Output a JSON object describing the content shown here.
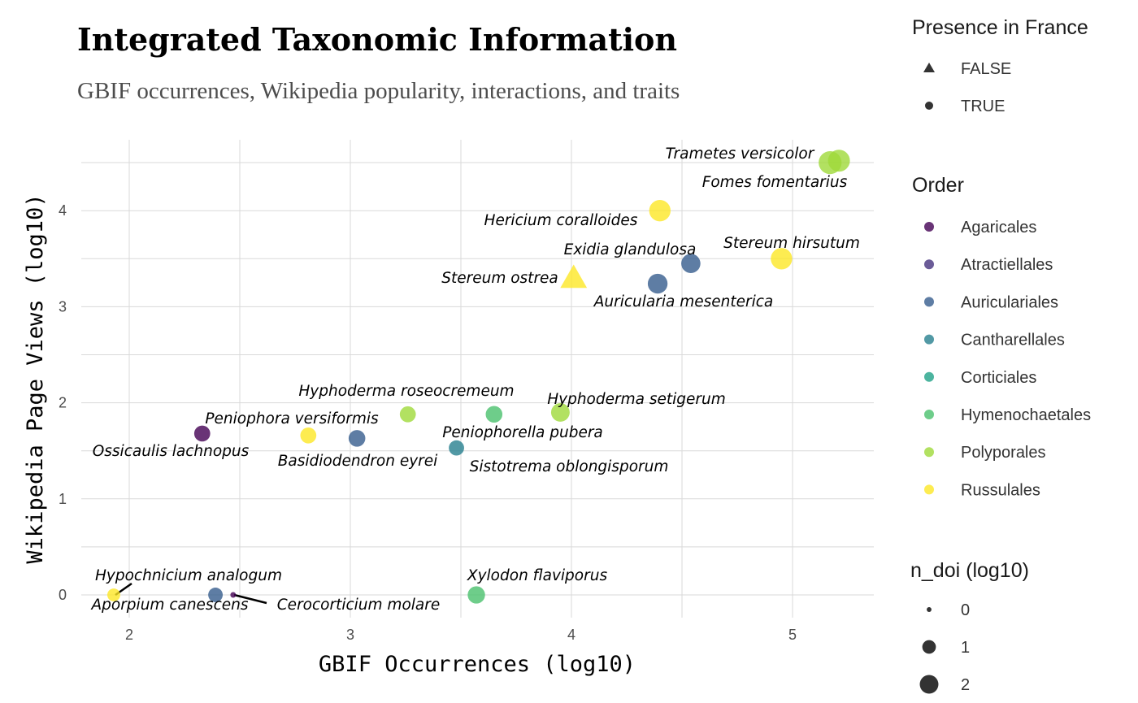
{
  "chart_data": {
    "type": "scatter",
    "title": "Integrated Taxonomic Information",
    "subtitle": "GBIF occurrences, Wikipedia popularity, interactions, and traits",
    "xlabel": "GBIF Occurrences (log10)",
    "ylabel": "Wikipedia Page Views (log10)",
    "xlim": [
      1.78,
      5.37
    ],
    "ylim": [
      -0.24,
      4.78
    ],
    "xticks": [
      2,
      3,
      4,
      5
    ],
    "yticks": [
      0,
      1,
      2,
      3,
      4
    ],
    "grid": true,
    "legend_placement": "right",
    "legends": {
      "shape": {
        "title": "Presence in France",
        "entries": [
          "FALSE",
          "TRUE"
        ]
      },
      "color": {
        "title": "Order",
        "entries": [
          "Agaricales",
          "Atractiellales",
          "Auriculariales",
          "Cantharellales",
          "Corticiales",
          "Hymenochaetales",
          "Polyporales",
          "Russulales"
        ],
        "colors": [
          "#440154",
          "#46337e",
          "#365c8d",
          "#277f8e",
          "#1fa187",
          "#4ac16d",
          "#9fda3a",
          "#fde725"
        ]
      },
      "size": {
        "title": "n_doi (log10)",
        "entries": [
          "0",
          "1",
          "2"
        ]
      }
    },
    "points": [
      {
        "label": "Trametes versicolor",
        "x": 5.17,
        "y": 4.5,
        "order": "Polyporales",
        "france": true,
        "n_doi": 2.2
      },
      {
        "label": "Fomes fomentarius",
        "x": 5.21,
        "y": 4.52,
        "order": "Polyporales",
        "france": true,
        "n_doi": 2.0
      },
      {
        "label": "Hericium coralloides",
        "x": 4.4,
        "y": 4.0,
        "order": "Russulales",
        "france": true,
        "n_doi": 1.9
      },
      {
        "label": "Exidia glandulosa",
        "x": 4.54,
        "y": 3.45,
        "order": "Auriculariales",
        "france": true,
        "n_doi": 1.5
      },
      {
        "label": "Stereum hirsutum",
        "x": 4.95,
        "y": 3.5,
        "order": "Russulales",
        "france": true,
        "n_doi": 1.9
      },
      {
        "label": "Stereum ostrea",
        "x": 4.01,
        "y": 3.3,
        "order": "Russulales",
        "france": false,
        "n_doi": 1.6
      },
      {
        "label": "Auricularia mesenterica",
        "x": 4.39,
        "y": 3.24,
        "order": "Auriculariales",
        "france": true,
        "n_doi": 1.6
      },
      {
        "label": "Hyphoderma roseocremeum",
        "x": 3.26,
        "y": 1.88,
        "order": "Polyporales",
        "france": true,
        "n_doi": 1.0
      },
      {
        "label": "Hyphoderma setigerum",
        "x": 3.95,
        "y": 1.9,
        "order": "Polyporales",
        "france": true,
        "n_doi": 1.4
      },
      {
        "label": "Peniophora versiformis",
        "x": 2.81,
        "y": 1.66,
        "order": "Russulales",
        "france": true,
        "n_doi": 1.0
      },
      {
        "label": "Peniophorella pubera",
        "x": 3.65,
        "y": 1.88,
        "order": "Hymenochaetales",
        "france": true,
        "n_doi": 1.1
      },
      {
        "label": "Ossicaulis lachnopus",
        "x": 2.33,
        "y": 1.68,
        "order": "Agaricales",
        "france": true,
        "n_doi": 1.0
      },
      {
        "label": "Basidiodendron eyrei",
        "x": 3.03,
        "y": 1.63,
        "order": "Auriculariales",
        "france": true,
        "n_doi": 1.1
      },
      {
        "label": "Sistotrema oblongisporum",
        "x": 3.48,
        "y": 1.53,
        "order": "Cantharellales",
        "france": true,
        "n_doi": 0.9
      },
      {
        "label": "Hypochnicium analogum",
        "x": 1.93,
        "y": 0.0,
        "order": "Russulales",
        "france": true,
        "n_doi": 0.6
      },
      {
        "label": "Aporpium canescens",
        "x": 2.39,
        "y": 0.0,
        "order": "Auriculariales",
        "france": true,
        "n_doi": 0.8
      },
      {
        "label": "Cerocorticium molare",
        "x": 2.47,
        "y": 0.0,
        "order": "Agaricales",
        "france": true,
        "n_doi": 0.0
      },
      {
        "label": "Xylodon flaviporus",
        "x": 3.57,
        "y": 0.0,
        "order": "Hymenochaetales",
        "france": true,
        "n_doi": 1.2
      }
    ]
  }
}
